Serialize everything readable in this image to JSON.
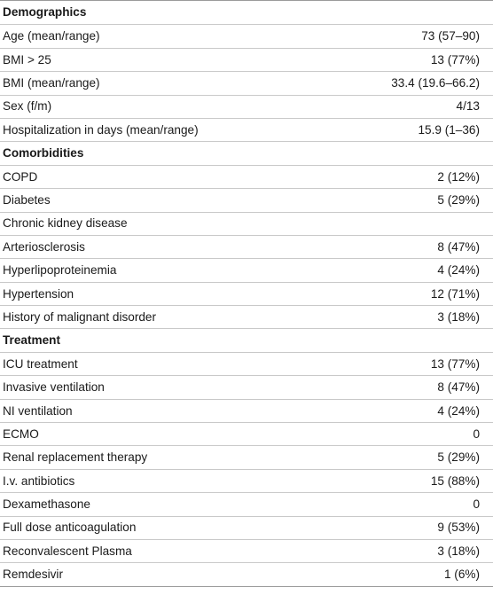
{
  "table": {
    "sections": [
      {
        "title": "Demographics",
        "rows": [
          {
            "label": "Age (mean/range)",
            "value": "73 (57–90)"
          },
          {
            "label": "BMI > 25",
            "value": "13 (77%)"
          },
          {
            "label": "BMI (mean/range)",
            "value": "33.4 (19.6–66.2)"
          },
          {
            "label": "Sex (f/m)",
            "value": "4/13"
          },
          {
            "label": "Hospitalization in days (mean/range)",
            "value": "15.9 (1–36)"
          }
        ]
      },
      {
        "title": "Comorbidities",
        "rows": [
          {
            "label": "COPD",
            "value": "2 (12%)"
          },
          {
            "label": "Diabetes",
            "value": "5 (29%)"
          },
          {
            "label": "Chronic kidney disease",
            "value": ""
          },
          {
            "label": "Arteriosclerosis",
            "value": "8 (47%)"
          },
          {
            "label": "Hyperlipoproteinemia",
            "value": "4 (24%)"
          },
          {
            "label": "Hypertension",
            "value": "12 (71%)"
          },
          {
            "label": "History of malignant disorder",
            "value": "3 (18%)"
          }
        ]
      },
      {
        "title": "Treatment",
        "rows": [
          {
            "label": "ICU treatment",
            "value": "13 (77%)"
          },
          {
            "label": "Invasive ventilation",
            "value": "8 (47%)"
          },
          {
            "label": "NI ventilation",
            "value": "4 (24%)"
          },
          {
            "label": "ECMO",
            "value": "0"
          },
          {
            "label": "Renal replacement therapy",
            "value": "5 (29%)"
          },
          {
            "label": "I.v. antibiotics",
            "value": "15 (88%)"
          },
          {
            "label": "Dexamethasone",
            "value": "0"
          },
          {
            "label": "Full dose anticoagulation",
            "value": "9 (53%)"
          },
          {
            "label": "Reconvalescent Plasma",
            "value": "3 (18%)"
          },
          {
            "label": "Remdesivir",
            "value": "1 (6%)"
          }
        ]
      }
    ]
  }
}
